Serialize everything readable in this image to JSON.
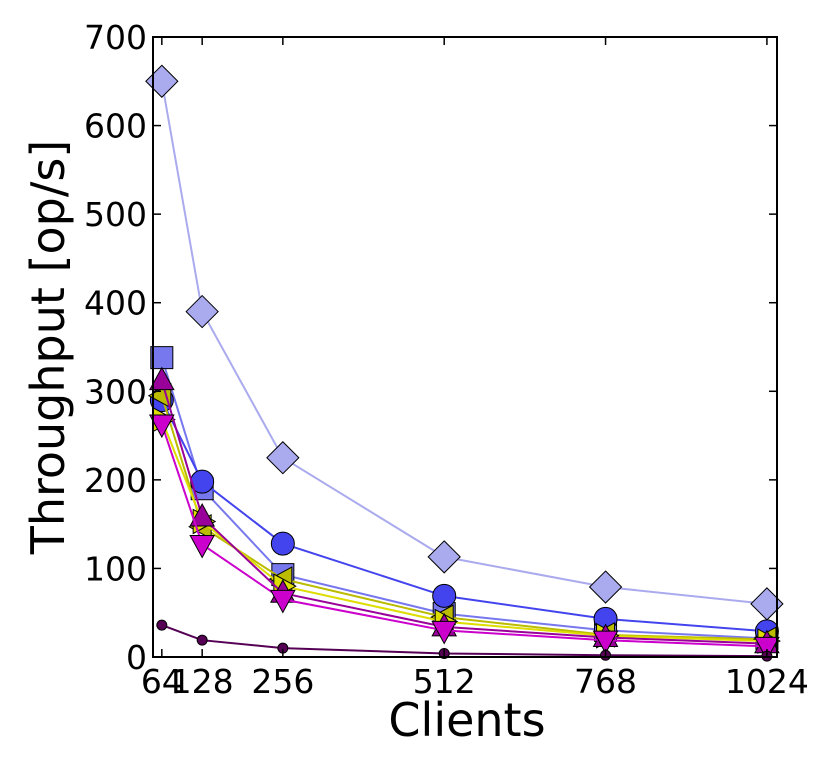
{
  "chart_data": {
    "type": "line",
    "title": "",
    "xlabel": "Clients",
    "ylabel": "Throughput [op/s]",
    "x": [
      64,
      128,
      256,
      512,
      768,
      1024
    ],
    "x_tick_labels": [
      "64",
      "128",
      "256",
      "512",
      "768",
      "1024"
    ],
    "xlim": [
      50,
      1040
    ],
    "ylim": [
      0,
      700
    ],
    "y_ticks": [
      0,
      100,
      200,
      300,
      400,
      500,
      600,
      700
    ],
    "y_tick_labels": [
      "0",
      "100",
      "200",
      "300",
      "400",
      "500",
      "600",
      "700"
    ],
    "grid": false,
    "series": [
      {
        "values": [
          650,
          390,
          225,
          113,
          79,
          60
        ],
        "color": "#aaaaee",
        "marker": "diamond"
      },
      {
        "values": [
          338,
          190,
          93,
          49,
          30,
          21
        ],
        "color": "#7777ee",
        "marker": "square"
      },
      {
        "values": [
          290,
          198,
          128,
          69,
          43,
          29
        ],
        "color": "#4444ee",
        "marker": "circle"
      },
      {
        "values": [
          295,
          147,
          88,
          45,
          25,
          20
        ],
        "color": "#bbbb00",
        "marker": "triangle-left"
      },
      {
        "values": [
          268,
          153,
          80,
          40,
          24,
          18
        ],
        "color": "#dddd00",
        "marker": "triangle-right"
      },
      {
        "values": [
          312,
          158,
          72,
          34,
          22,
          15
        ],
        "color": "#990099",
        "marker": "triangle-up"
      },
      {
        "values": [
          263,
          127,
          65,
          30,
          19,
          12
        ],
        "color": "#cc00cc",
        "marker": "triangle-down"
      },
      {
        "values": [
          36,
          19,
          10,
          4,
          2,
          1
        ],
        "color": "#550055",
        "marker": "small-circle"
      }
    ]
  }
}
